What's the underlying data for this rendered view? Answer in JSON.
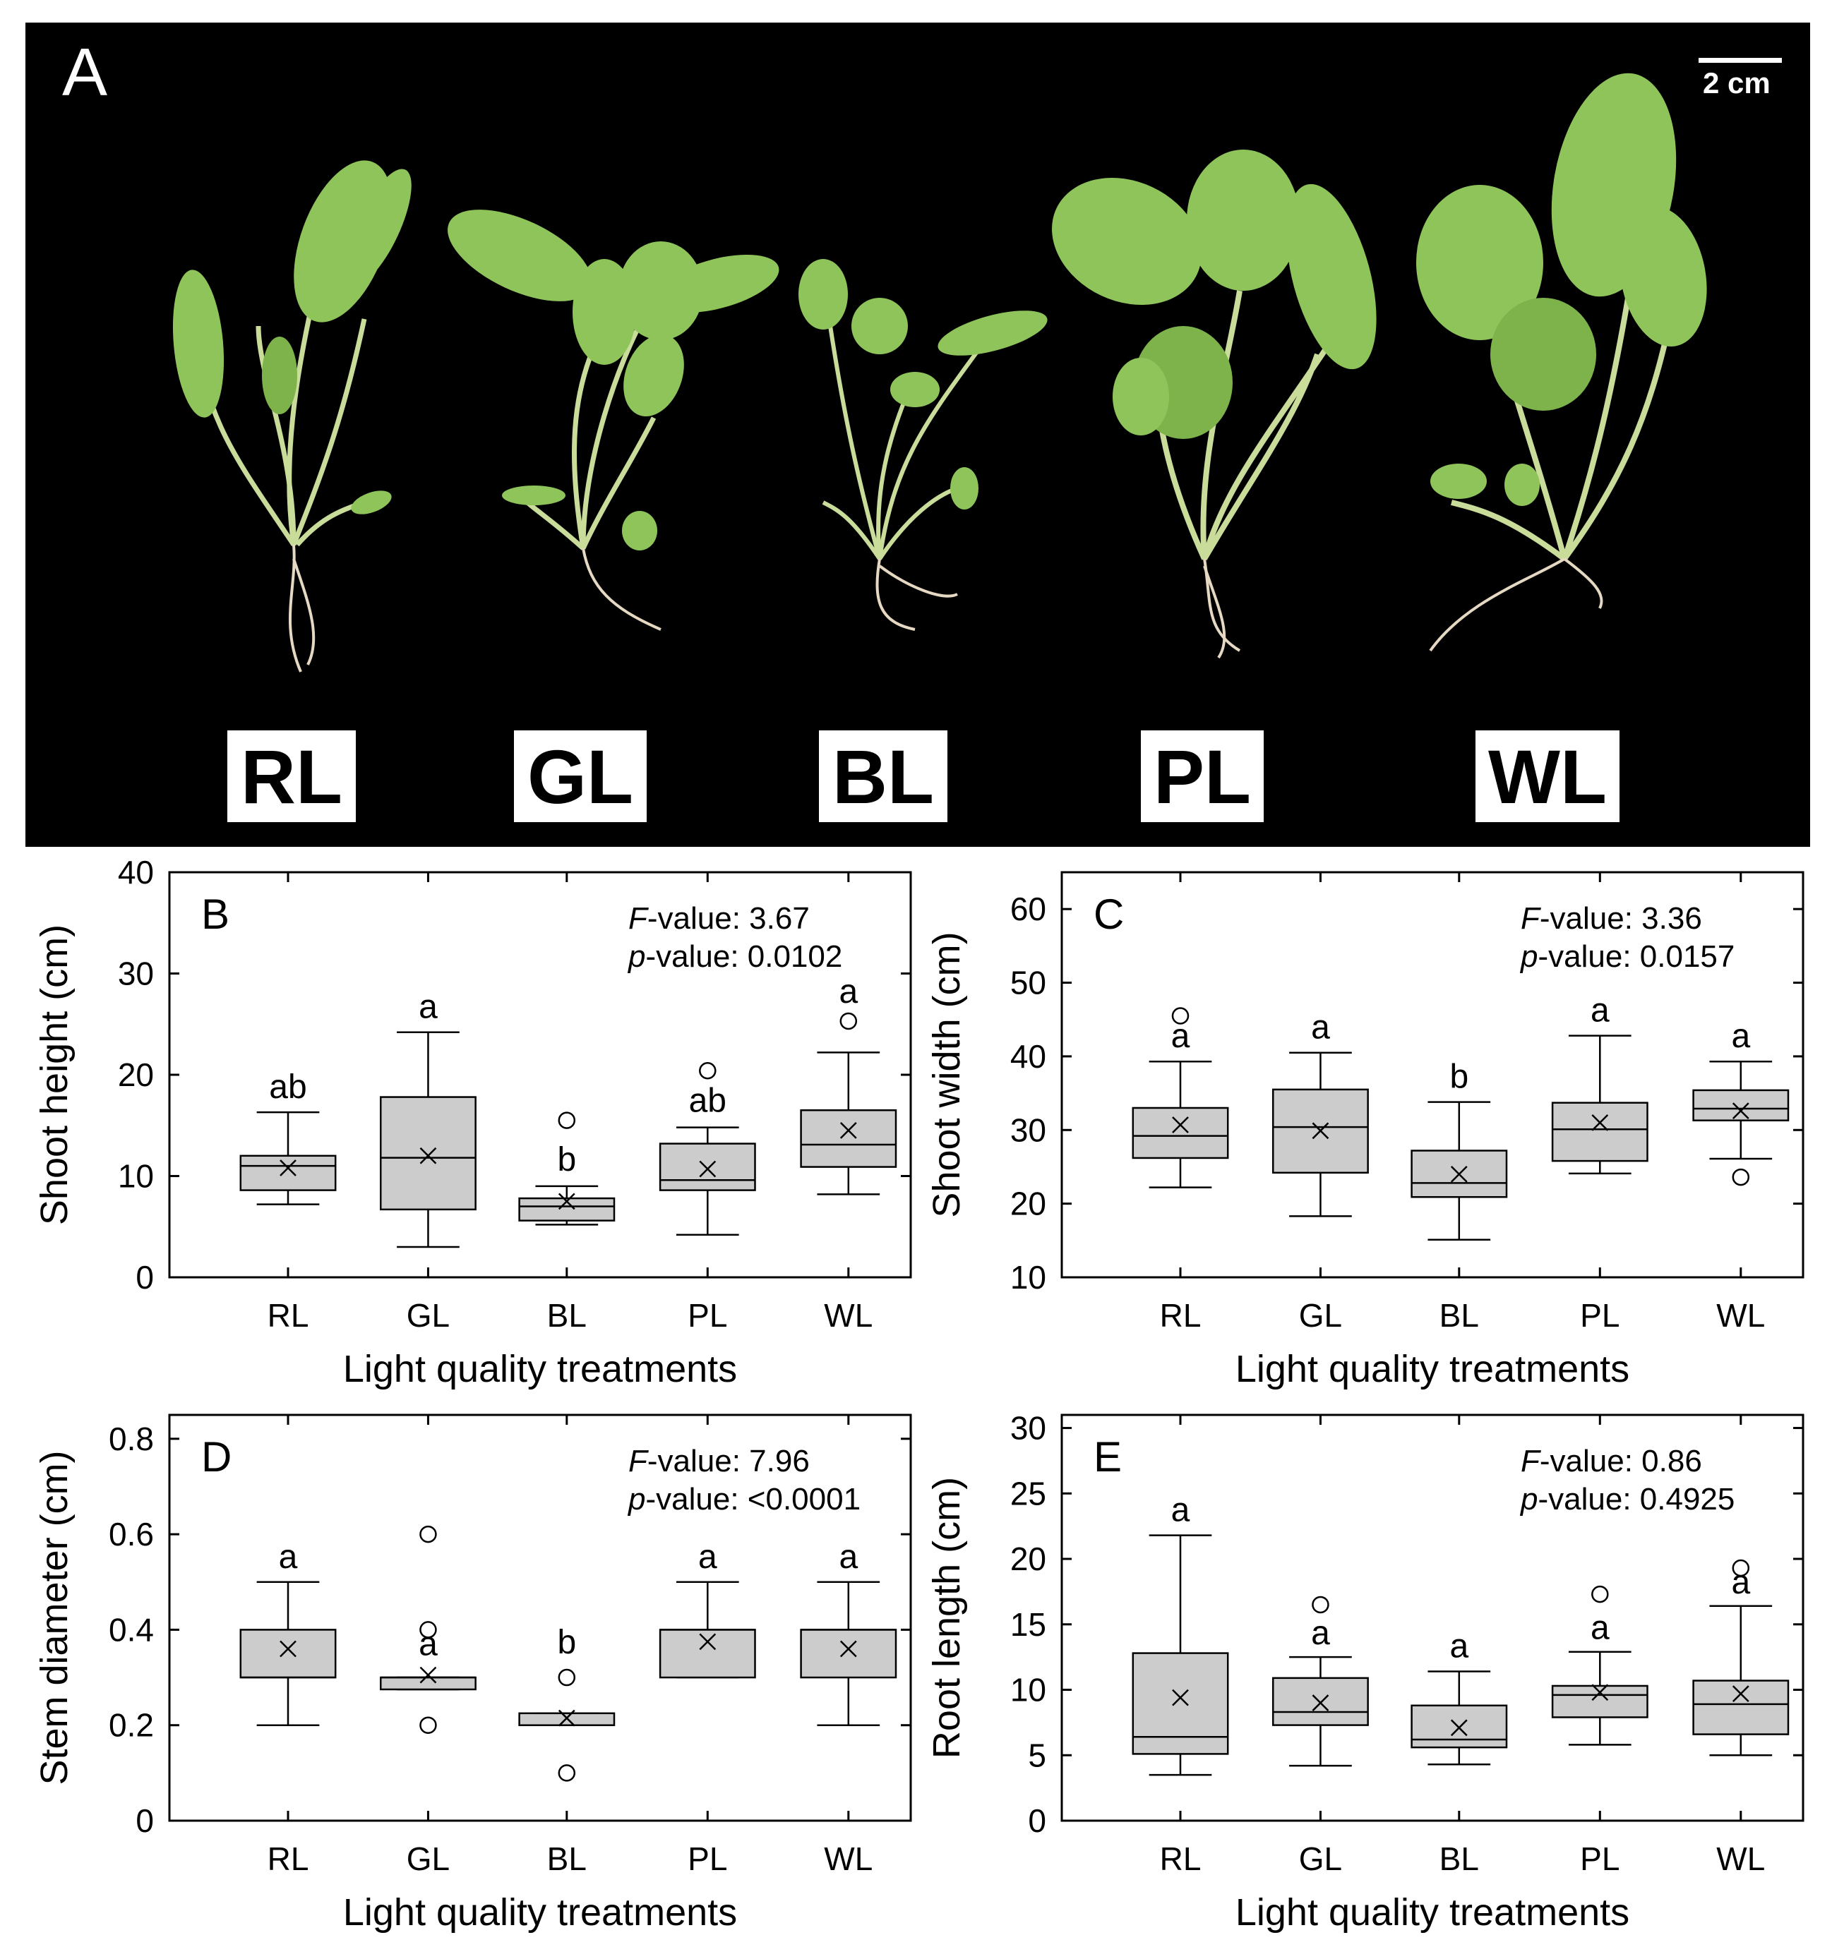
{
  "photo": {
    "panel_letter": "A",
    "scale_bar_label": "2 cm",
    "treatment_labels": [
      "RL",
      "GL",
      "BL",
      "PL",
      "WL"
    ]
  },
  "colors": {
    "box_fill": "#cccccc",
    "stroke": "#000000",
    "photo_bg": "#000000",
    "leaf": "#8fc45a",
    "stem": "#c9dc9a",
    "root": "#e6d9c4"
  },
  "chart_data": [
    {
      "type": "box",
      "panel_letter": "B",
      "ylabel": "Shoot height (cm)",
      "xlabel": "Light quality treatments",
      "categories": [
        "RL",
        "GL",
        "BL",
        "PL",
        "WL"
      ],
      "ylim": [
        0,
        40
      ],
      "yticks": [
        0,
        10,
        20,
        30,
        40
      ],
      "ytick_labels": [
        "0",
        "10",
        "20",
        "30",
        "40"
      ],
      "stats": {
        "f_label": "F",
        "f_suffix": "-value: 3.67",
        "p_label": "p",
        "p_suffix": "-value: 0.0102"
      },
      "boxes": [
        {
          "min": 7.2,
          "q1": 8.6,
          "median": 11,
          "q3": 12,
          "max": 16.3,
          "mean": 10.8,
          "outliers": [],
          "letter": "ab"
        },
        {
          "min": 3,
          "q1": 6.7,
          "median": 11.8,
          "q3": 17.8,
          "max": 24.2,
          "mean": 12,
          "outliers": [],
          "letter": "a"
        },
        {
          "min": 5.2,
          "q1": 5.6,
          "median": 7,
          "q3": 7.8,
          "max": 9,
          "mean": 7.5,
          "outliers": [
            15.5
          ],
          "letter": "b"
        },
        {
          "min": 4.2,
          "q1": 8.6,
          "median": 9.6,
          "q3": 13.2,
          "max": 14.8,
          "mean": 10.7,
          "outliers": [
            20.4
          ],
          "letter": "ab"
        },
        {
          "min": 8.2,
          "q1": 10.9,
          "median": 13.1,
          "q3": 16.5,
          "max": 22.2,
          "mean": 14.5,
          "outliers": [
            25.3
          ],
          "letter": "a"
        }
      ]
    },
    {
      "type": "box",
      "panel_letter": "C",
      "ylabel": "Shoot width (cm)",
      "xlabel": "Light quality treatments",
      "categories": [
        "RL",
        "GL",
        "BL",
        "PL",
        "WL"
      ],
      "ylim": [
        10,
        65
      ],
      "yticks": [
        10,
        20,
        30,
        40,
        50,
        60
      ],
      "ytick_labels": [
        "10",
        "20",
        "30",
        "40",
        "50",
        "60"
      ],
      "stats": {
        "f_label": "F",
        "f_suffix": "-value: 3.36",
        "p_label": "p",
        "p_suffix": "-value: 0.0157"
      },
      "boxes": [
        {
          "min": 22.2,
          "q1": 26.2,
          "median": 29.2,
          "q3": 33,
          "max": 39.3,
          "mean": 30.7,
          "outliers": [
            45.5
          ],
          "letter": "a"
        },
        {
          "min": 18.3,
          "q1": 24.2,
          "median": 30.4,
          "q3": 35.5,
          "max": 40.5,
          "mean": 29.9,
          "outliers": [],
          "letter": "a"
        },
        {
          "min": 15.1,
          "q1": 20.9,
          "median": 22.8,
          "q3": 27.2,
          "max": 33.8,
          "mean": 24,
          "outliers": [],
          "letter": "b"
        },
        {
          "min": 24.1,
          "q1": 25.8,
          "median": 30.1,
          "q3": 33.7,
          "max": 42.8,
          "mean": 31,
          "outliers": [],
          "letter": "a"
        },
        {
          "min": 26.1,
          "q1": 31.3,
          "median": 32.9,
          "q3": 35.4,
          "max": 39.3,
          "mean": 32.6,
          "outliers": [
            23.6
          ],
          "letter": "a"
        }
      ]
    },
    {
      "type": "box",
      "panel_letter": "D",
      "ylabel": "Stem diameter (cm)",
      "xlabel": "Light quality treatments",
      "categories": [
        "RL",
        "GL",
        "BL",
        "PL",
        "WL"
      ],
      "ylim": [
        0,
        0.85
      ],
      "yticks": [
        0,
        0.2,
        0.4,
        0.6,
        0.8
      ],
      "ytick_labels": [
        "0",
        "0.2",
        "0.4",
        "0.6",
        "0.8"
      ],
      "stats": {
        "f_label": "F",
        "f_suffix": "-value: 7.96",
        "p_label": "p",
        "p_suffix": "-value: <0.0001"
      },
      "boxes": [
        {
          "min": 0.2,
          "q1": 0.3,
          "median": 0.3,
          "q3": 0.4,
          "max": 0.5,
          "mean": 0.36,
          "outliers": [],
          "letter": "a"
        },
        {
          "min": 0.275,
          "q1": 0.275,
          "median": 0.3,
          "q3": 0.3,
          "max": 0.3,
          "mean": 0.305,
          "outliers": [
            0.6,
            0.4,
            0.2
          ],
          "letter": "a"
        },
        {
          "min": 0.2,
          "q1": 0.2,
          "median": 0.2,
          "q3": 0.225,
          "max": 0.225,
          "mean": 0.215,
          "outliers": [
            0.3,
            0.1
          ],
          "letter": "b"
        },
        {
          "min": 0.3,
          "q1": 0.3,
          "median": 0.4,
          "q3": 0.4,
          "max": 0.5,
          "mean": 0.375,
          "outliers": [],
          "letter": "a"
        },
        {
          "min": 0.2,
          "q1": 0.3,
          "median": 0.4,
          "q3": 0.4,
          "max": 0.5,
          "mean": 0.36,
          "outliers": [],
          "letter": "a"
        }
      ]
    },
    {
      "type": "box",
      "panel_letter": "E",
      "ylabel": "Root length (cm)",
      "xlabel": "Light quality treatments",
      "categories": [
        "RL",
        "GL",
        "BL",
        "PL",
        "WL"
      ],
      "ylim": [
        0,
        31
      ],
      "yticks": [
        0,
        5,
        10,
        15,
        20,
        25,
        30
      ],
      "ytick_labels": [
        "0",
        "5",
        "10",
        "15",
        "20",
        "25",
        "30"
      ],
      "stats": {
        "f_label": "F",
        "f_suffix": "-value: 0.86",
        "p_label": "p",
        "p_suffix": "-value: 0.4925"
      },
      "boxes": [
        {
          "min": 3.5,
          "q1": 5.1,
          "median": 6.4,
          "q3": 12.8,
          "max": 21.8,
          "mean": 9.4,
          "outliers": [],
          "letter": "a"
        },
        {
          "min": 4.2,
          "q1": 7.3,
          "median": 8.3,
          "q3": 10.9,
          "max": 12.5,
          "mean": 9,
          "outliers": [
            16.5
          ],
          "letter": "a"
        },
        {
          "min": 4.3,
          "q1": 5.6,
          "median": 6.2,
          "q3": 8.8,
          "max": 11.4,
          "mean": 7.1,
          "outliers": [],
          "letter": "a"
        },
        {
          "min": 5.8,
          "q1": 7.9,
          "median": 9.6,
          "q3": 10.3,
          "max": 12.9,
          "mean": 9.8,
          "outliers": [
            17.3
          ],
          "letter": "a"
        },
        {
          "min": 5,
          "q1": 6.6,
          "median": 8.9,
          "q3": 10.7,
          "max": 16.4,
          "mean": 9.7,
          "outliers": [
            19.3
          ],
          "letter": "a"
        }
      ]
    }
  ]
}
